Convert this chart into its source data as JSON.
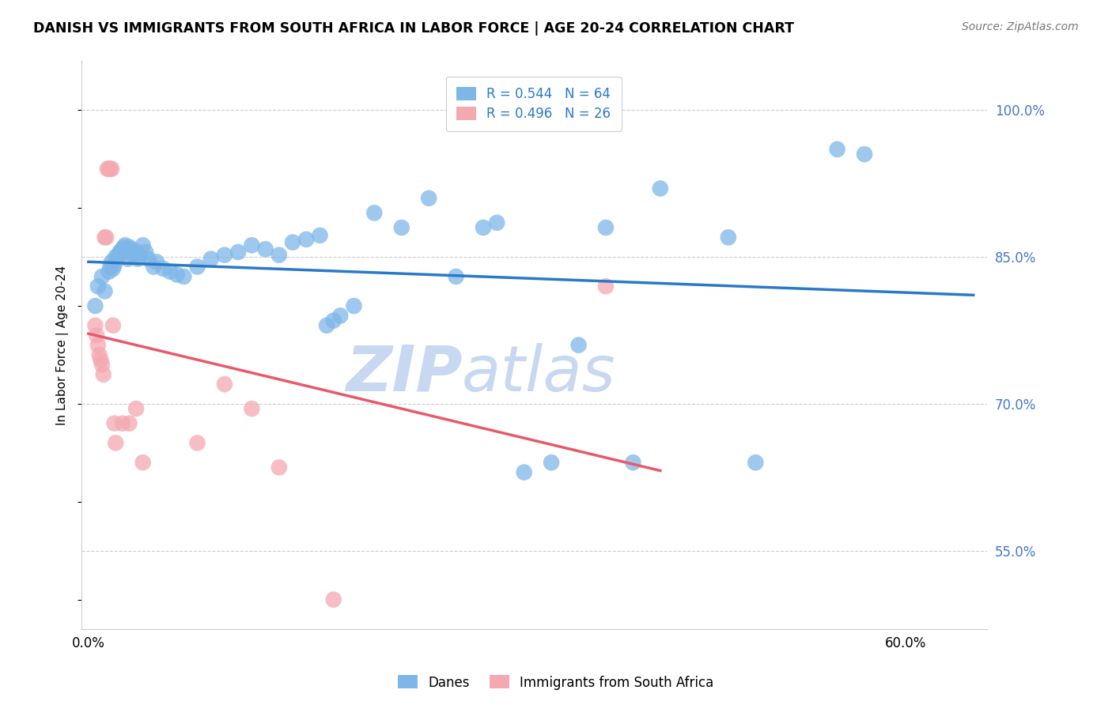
{
  "title": "DANISH VS IMMIGRANTS FROM SOUTH AFRICA IN LABOR FORCE | AGE 20-24 CORRELATION CHART",
  "source": "Source: ZipAtlas.com",
  "ylabel": "In Labor Force | Age 20-24",
  "xlim": [
    -0.005,
    0.66
  ],
  "ylim": [
    0.47,
    1.05
  ],
  "yticks_right": [
    0.55,
    0.7,
    0.85,
    1.0
  ],
  "ytick_labels_right": [
    "55.0%",
    "70.0%",
    "85.0%",
    "100.0%"
  ],
  "blue_R": 0.544,
  "blue_N": 64,
  "pink_R": 0.496,
  "pink_N": 26,
  "blue_color": "#7EB6E8",
  "pink_color": "#F4A8B0",
  "blue_line_color": "#2979C9",
  "pink_line_color": "#E8596A",
  "legend_label_blue": "Danes",
  "legend_label_pink": "Immigrants from South Africa",
  "watermark_zip": "ZIP",
  "watermark_atlas": "atlas",
  "watermark_color": "#C8D8F0",
  "blue_dots": [
    [
      0.005,
      0.8
    ],
    [
      0.007,
      0.82
    ],
    [
      0.01,
      0.83
    ],
    [
      0.012,
      0.815
    ],
    [
      0.015,
      0.835
    ],
    [
      0.016,
      0.84
    ],
    [
      0.017,
      0.845
    ],
    [
      0.018,
      0.838
    ],
    [
      0.019,
      0.842
    ],
    [
      0.02,
      0.85
    ],
    [
      0.021,
      0.848
    ],
    [
      0.022,
      0.852
    ],
    [
      0.023,
      0.855
    ],
    [
      0.024,
      0.856
    ],
    [
      0.025,
      0.858
    ],
    [
      0.026,
      0.86
    ],
    [
      0.027,
      0.862
    ],
    [
      0.028,
      0.855
    ],
    [
      0.029,
      0.848
    ],
    [
      0.03,
      0.86
    ],
    [
      0.031,
      0.858
    ],
    [
      0.033,
      0.852
    ],
    [
      0.035,
      0.856
    ],
    [
      0.036,
      0.848
    ],
    [
      0.038,
      0.85
    ],
    [
      0.04,
      0.862
    ],
    [
      0.042,
      0.855
    ],
    [
      0.044,
      0.848
    ],
    [
      0.048,
      0.84
    ],
    [
      0.05,
      0.845
    ],
    [
      0.055,
      0.838
    ],
    [
      0.06,
      0.835
    ],
    [
      0.065,
      0.832
    ],
    [
      0.07,
      0.83
    ],
    [
      0.08,
      0.84
    ],
    [
      0.09,
      0.848
    ],
    [
      0.1,
      0.852
    ],
    [
      0.11,
      0.855
    ],
    [
      0.12,
      0.862
    ],
    [
      0.13,
      0.858
    ],
    [
      0.14,
      0.852
    ],
    [
      0.15,
      0.865
    ],
    [
      0.16,
      0.868
    ],
    [
      0.17,
      0.872
    ],
    [
      0.175,
      0.78
    ],
    [
      0.18,
      0.785
    ],
    [
      0.185,
      0.79
    ],
    [
      0.195,
      0.8
    ],
    [
      0.21,
      0.895
    ],
    [
      0.23,
      0.88
    ],
    [
      0.25,
      0.91
    ],
    [
      0.27,
      0.83
    ],
    [
      0.29,
      0.88
    ],
    [
      0.3,
      0.885
    ],
    [
      0.32,
      0.63
    ],
    [
      0.34,
      0.64
    ],
    [
      0.36,
      0.76
    ],
    [
      0.38,
      0.88
    ],
    [
      0.4,
      0.64
    ],
    [
      0.42,
      0.92
    ],
    [
      0.47,
      0.87
    ],
    [
      0.49,
      0.64
    ],
    [
      0.55,
      0.96
    ],
    [
      0.57,
      0.955
    ]
  ],
  "pink_dots": [
    [
      0.005,
      0.78
    ],
    [
      0.006,
      0.77
    ],
    [
      0.007,
      0.76
    ],
    [
      0.008,
      0.75
    ],
    [
      0.009,
      0.745
    ],
    [
      0.01,
      0.74
    ],
    [
      0.011,
      0.73
    ],
    [
      0.012,
      0.87
    ],
    [
      0.013,
      0.87
    ],
    [
      0.014,
      0.94
    ],
    [
      0.015,
      0.94
    ],
    [
      0.016,
      0.94
    ],
    [
      0.017,
      0.94
    ],
    [
      0.018,
      0.78
    ],
    [
      0.019,
      0.68
    ],
    [
      0.02,
      0.66
    ],
    [
      0.025,
      0.68
    ],
    [
      0.03,
      0.68
    ],
    [
      0.035,
      0.695
    ],
    [
      0.04,
      0.64
    ],
    [
      0.08,
      0.66
    ],
    [
      0.1,
      0.72
    ],
    [
      0.12,
      0.695
    ],
    [
      0.14,
      0.635
    ],
    [
      0.18,
      0.5
    ],
    [
      0.38,
      0.82
    ]
  ],
  "blue_trend_x": [
    0.0,
    0.65
  ],
  "pink_trend_x": [
    0.0,
    0.42
  ]
}
